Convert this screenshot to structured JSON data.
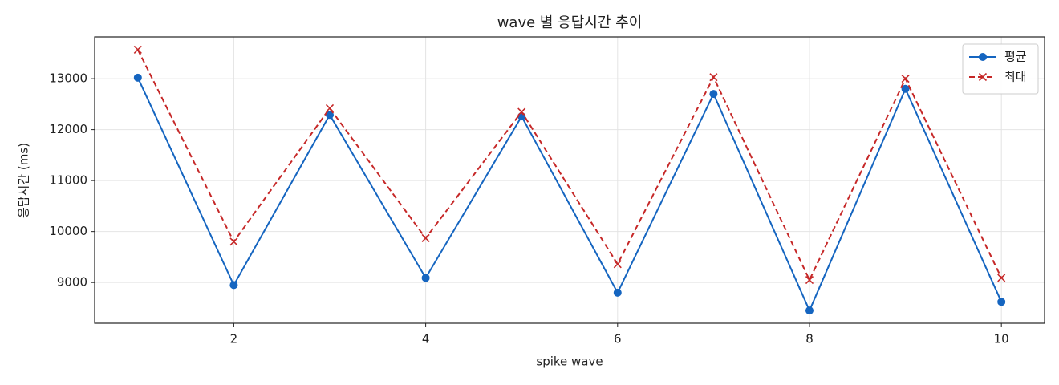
{
  "chart_data": {
    "type": "line",
    "title": "wave 별 응답시간 추이",
    "xlabel": "spike wave",
    "ylabel": "응답시간 (ms)",
    "x": [
      1,
      2,
      3,
      4,
      5,
      6,
      7,
      8,
      9,
      10
    ],
    "series": [
      {
        "name": "평균",
        "color": "#1565c0",
        "linestyle": "solid",
        "marker": "o",
        "values": [
          13020,
          8950,
          12290,
          9090,
          12260,
          8800,
          12700,
          8450,
          12800,
          8620
        ]
      },
      {
        "name": "최대",
        "color": "#c62828",
        "linestyle": "dashed",
        "marker": "x",
        "values": [
          13570,
          9800,
          12420,
          9870,
          12350,
          9360,
          13030,
          9050,
          13000,
          9090
        ]
      }
    ],
    "xlim": [
      0.55,
      10.45
    ],
    "xticks": [
      2,
      4,
      6,
      8,
      10
    ],
    "ylim": [
      8200,
      13820
    ],
    "yticks": [
      9000,
      10000,
      11000,
      12000,
      13000
    ],
    "grid": true,
    "legend": "upper right"
  }
}
